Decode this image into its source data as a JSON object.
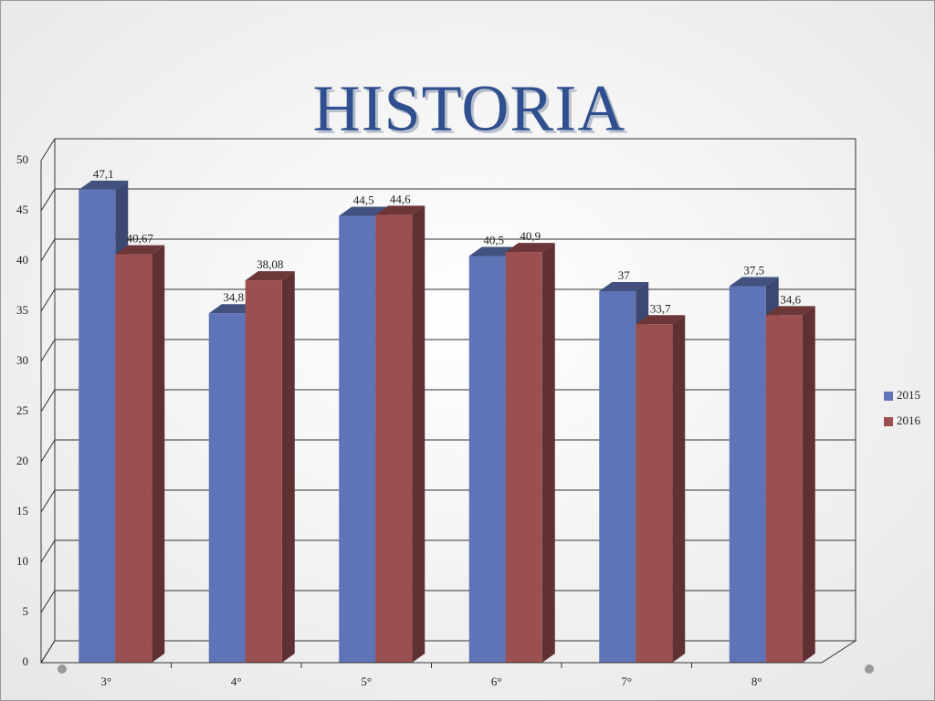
{
  "chart_data": {
    "type": "bar3d",
    "title": "HISTORIA",
    "categories": [
      "3°",
      "4°",
      "5°",
      "6°",
      "7°",
      "8°"
    ],
    "series": [
      {
        "name": "2015",
        "color": "#5f74b6",
        "values": [
          47.1,
          34.8,
          44.5,
          40.5,
          37,
          37.5
        ],
        "value_labels": [
          "47,1",
          "34,8",
          "44,5",
          "40,5",
          "37",
          "37,5"
        ]
      },
      {
        "name": "2016",
        "color": "#9b4f50",
        "values": [
          40.67,
          38.08,
          44.6,
          40.9,
          33.7,
          34.6
        ],
        "value_labels": [
          "40,67",
          "38,08",
          "44,6",
          "40,9",
          "33,7",
          "34,6"
        ]
      }
    ],
    "ylim": [
      0,
      50
    ],
    "yticks": [
      0,
      5,
      10,
      15,
      20,
      25,
      30,
      35,
      40,
      45,
      50
    ],
    "grid": true,
    "legend": "right"
  }
}
